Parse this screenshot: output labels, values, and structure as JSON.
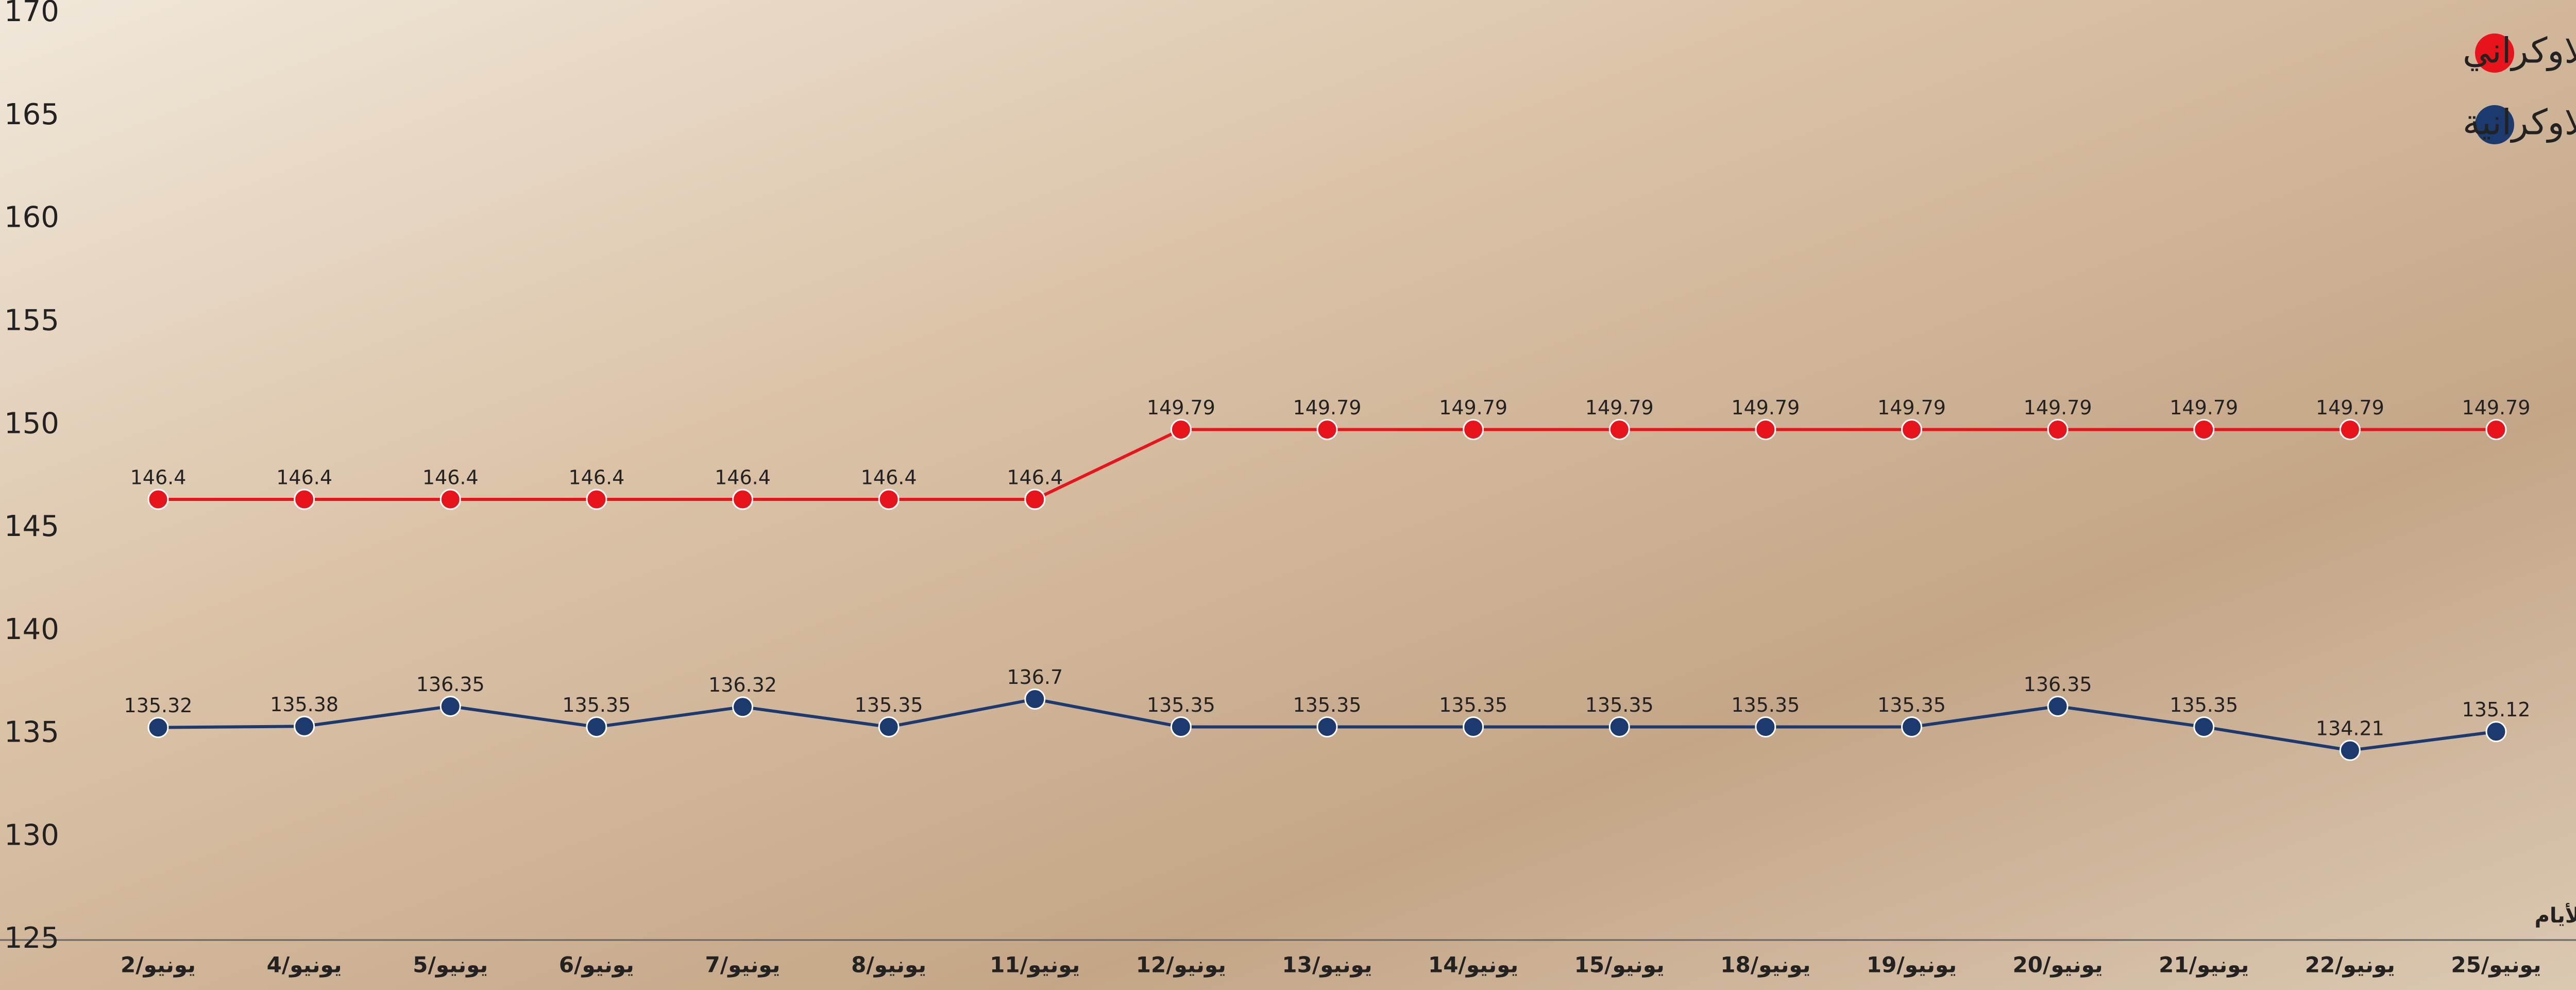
{
  "chart_data": {
    "type": "line",
    "x_label": "الأيام",
    "categories": [
      "يونيو/2",
      "يونيو/4",
      "يونيو/5",
      "يونيو/6",
      "يونيو/7",
      "يونيو/8",
      "يونيو/11",
      "يونيو/12",
      "يونيو/13",
      "يونيو/14",
      "يونيو/15",
      "يونيو/18",
      "يونيو/19",
      "يونيو/20",
      "يونيو/21",
      "يونيو/22",
      "يونيو/25"
    ],
    "series": [
      {
        "name": "القمح الاوكراني",
        "color": "#e8141b",
        "values": [
          146.4,
          146.4,
          146.4,
          146.4,
          146.4,
          146.4,
          146.4,
          149.79,
          149.79,
          149.79,
          149.79,
          149.79,
          149.79,
          149.79,
          149.79,
          149.79,
          149.79
        ]
      },
      {
        "name": "الذرة الاوكرانية",
        "color": "#1c3a6e",
        "values": [
          135.32,
          135.38,
          136.35,
          135.35,
          136.32,
          135.35,
          136.7,
          135.35,
          135.35,
          135.35,
          135.35,
          135.35,
          135.35,
          136.35,
          135.35,
          134.21,
          135.12
        ]
      }
    ],
    "ylim": [
      125,
      170
    ],
    "yticks": [
      125,
      130,
      135,
      140,
      145,
      150,
      155,
      160,
      165,
      170
    ],
    "grid": false,
    "legend": "top-right"
  }
}
